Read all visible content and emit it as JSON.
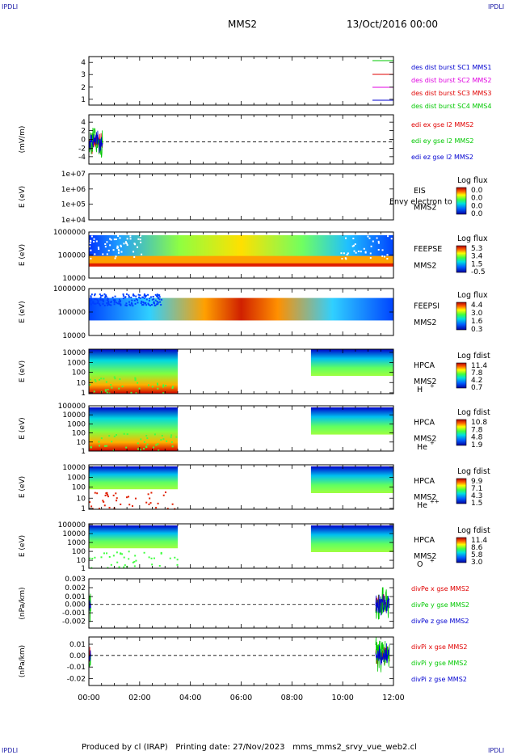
{
  "header": {
    "corner_tl": "IPDLI",
    "corner_tr": "IPDLI",
    "corner_bl": "IPDLI",
    "corner_br": "IPDLI",
    "spacecraft": "MMS2",
    "date": "13/Oct/2016 00:00"
  },
  "footer": {
    "produced_by": "Produced by cl (IRAP)",
    "printing_date": "Printing date: 27/Nov/2023",
    "script_name": "mms_mms2_srvy_vue_web2.cl"
  },
  "colors": {
    "green": "#00c800",
    "red": "#e00000",
    "magenta": "#e000e0",
    "blue": "#0000d0"
  },
  "chart_data": [
    {
      "type": "line",
      "panel": "des-burst",
      "ylabel": "",
      "yticks": [
        "1",
        "2",
        "3",
        "4"
      ],
      "legend": [
        {
          "text": "des dist burst SC1 MMS1",
          "color": "#0000d0"
        },
        {
          "text": "des dist burst SC2 MMS2",
          "color": "#e000e0"
        },
        {
          "text": "des dist burst SC3 MMS3",
          "color": "#e00000"
        },
        {
          "text": "des dist burst SC4 MMS4",
          "color": "#00c800"
        }
      ]
    },
    {
      "type": "line",
      "panel": "edi-e",
      "ylabel": "(mV/m)",
      "yticks": [
        "4",
        "2",
        "0",
        "-2",
        "-4"
      ],
      "ylim": [
        -5,
        5
      ],
      "legend": [
        {
          "text": "edi ex gse l2 MMS2",
          "color": "#e00000"
        },
        {
          "text": "edi ey gse l2 MMS2",
          "color": "#00c800"
        },
        {
          "text": "edi ez gse l2 MMS2",
          "color": "#0000d0"
        }
      ]
    },
    {
      "type": "heatmap",
      "panel": "eis",
      "ylabel": "E (eV)",
      "yticks": [
        "1e+07",
        "1e+06",
        "1e+05",
        "1e+04"
      ],
      "inst": [
        "EIS",
        "MMS2"
      ],
      "overlay": "Envy electron to",
      "cbar_title": "Log flux",
      "cbar_vals": [
        "0.0",
        "0.0",
        "0.0",
        "0.0"
      ]
    },
    {
      "type": "heatmap",
      "panel": "feepse",
      "ylabel": "E (eV)",
      "yticks": [
        "1000000",
        "100000",
        "10000"
      ],
      "inst": [
        "FEEPSE",
        "MMS2"
      ],
      "cbar_title": "Log flux",
      "cbar_vals": [
        "5.3",
        "3.4",
        "1.5",
        "-0.5"
      ]
    },
    {
      "type": "heatmap",
      "panel": "feepsi",
      "ylabel": "E (eV)",
      "yticks": [
        "1000000",
        "100000",
        "10000"
      ],
      "inst": [
        "FEEPSI",
        "MMS2"
      ],
      "cbar_title": "Log flux",
      "cbar_vals": [
        "4.4",
        "3.0",
        "1.6",
        "0.3"
      ]
    },
    {
      "type": "heatmap",
      "panel": "hpca-h",
      "ylabel": "E (eV)",
      "yticks": [
        "10000",
        "1000",
        "100",
        "10",
        "1"
      ],
      "inst": [
        "HPCA",
        "MMS2",
        "H",
        "+"
      ],
      "cbar_title": "Log fdist",
      "cbar_vals": [
        "11.4",
        "7.8",
        "4.2",
        "0.7"
      ]
    },
    {
      "type": "heatmap",
      "panel": "hpca-he",
      "ylabel": "E (eV)",
      "yticks": [
        "100000",
        "10000",
        "1000",
        "100",
        "10",
        "1"
      ],
      "inst": [
        "HPCA",
        "MMS2",
        "He",
        "+"
      ],
      "cbar_title": "Log fdist",
      "cbar_vals": [
        "10.8",
        "7.8",
        "4.8",
        "1.9"
      ]
    },
    {
      "type": "heatmap",
      "panel": "hpca-hepp",
      "ylabel": "E (eV)",
      "yticks": [
        "10000",
        "1000",
        "100",
        "10",
        "1"
      ],
      "inst": [
        "HPCA",
        "MMS2",
        "He",
        "++"
      ],
      "cbar_title": "Log fdist",
      "cbar_vals": [
        "9.9",
        "7.1",
        "4.3",
        "1.5"
      ]
    },
    {
      "type": "heatmap",
      "panel": "hpca-o",
      "ylabel": "E (eV)",
      "yticks": [
        "100000",
        "10000",
        "1000",
        "100",
        "10",
        "1"
      ],
      "inst": [
        "HPCA",
        "MMS2",
        "O",
        "+"
      ],
      "cbar_title": "Log fdist",
      "cbar_vals": [
        "11.4",
        "8.6",
        "5.8",
        "3.0"
      ]
    },
    {
      "type": "line",
      "panel": "divpe",
      "ylabel": "(nPa/km)",
      "yticks": [
        "0.003",
        "0.002",
        "0.001",
        "0.000",
        "-0.001",
        "-0.002"
      ],
      "ylim": [
        -0.0028,
        0.0031
      ],
      "legend": [
        {
          "text": "divPe x gse MMS2",
          "color": "#e00000"
        },
        {
          "text": "divPe y gse MMS2",
          "color": "#00c800"
        },
        {
          "text": "divPe z gse MMS2",
          "color": "#0000d0"
        }
      ]
    },
    {
      "type": "line",
      "panel": "divpi",
      "ylabel": "(nPa/km)",
      "yticks": [
        "0.01",
        "0.00",
        "-0.01",
        "-0.02"
      ],
      "ylim": [
        -0.024,
        0.016
      ],
      "legend": [
        {
          "text": "divPi x gse MMS2",
          "color": "#e00000"
        },
        {
          "text": "divPi y gse MMS2",
          "color": "#00c800"
        },
        {
          "text": "divPi z gse MMS2",
          "color": "#0000d0"
        }
      ]
    }
  ],
  "xaxis": {
    "ticks": [
      "00:00",
      "02:00",
      "04:00",
      "06:00",
      "08:00",
      "10:00",
      "12:00"
    ],
    "xlim_hours": [
      0,
      12
    ]
  }
}
